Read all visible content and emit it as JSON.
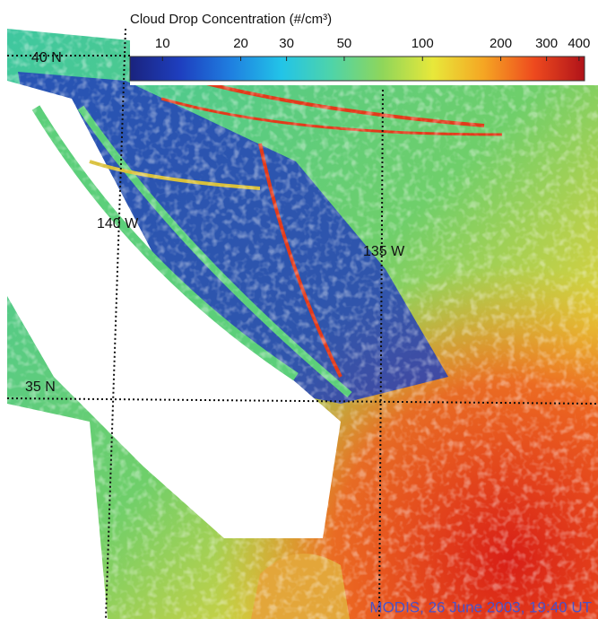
{
  "colorbar": {
    "title": "Cloud Drop Concentration (#/cm³)",
    "log": true,
    "lim": [
      7.5,
      420
    ],
    "ticks": [
      10,
      20,
      30,
      50,
      100,
      200,
      300,
      400
    ],
    "colors": [
      "#1a237e",
      "#1e3fbf",
      "#1f7fe0",
      "#22c4e8",
      "#4fd4a8",
      "#8fd65a",
      "#e8e83a",
      "#f5a623",
      "#ee4a1e",
      "#b0131a"
    ]
  },
  "labels": {
    "lat_north": "40 N",
    "lat_south": "35 N",
    "lon_west": "140 W",
    "lon_east": "135 W",
    "credit": "MODIS, 26 June 2003, 19:40 UT"
  }
}
